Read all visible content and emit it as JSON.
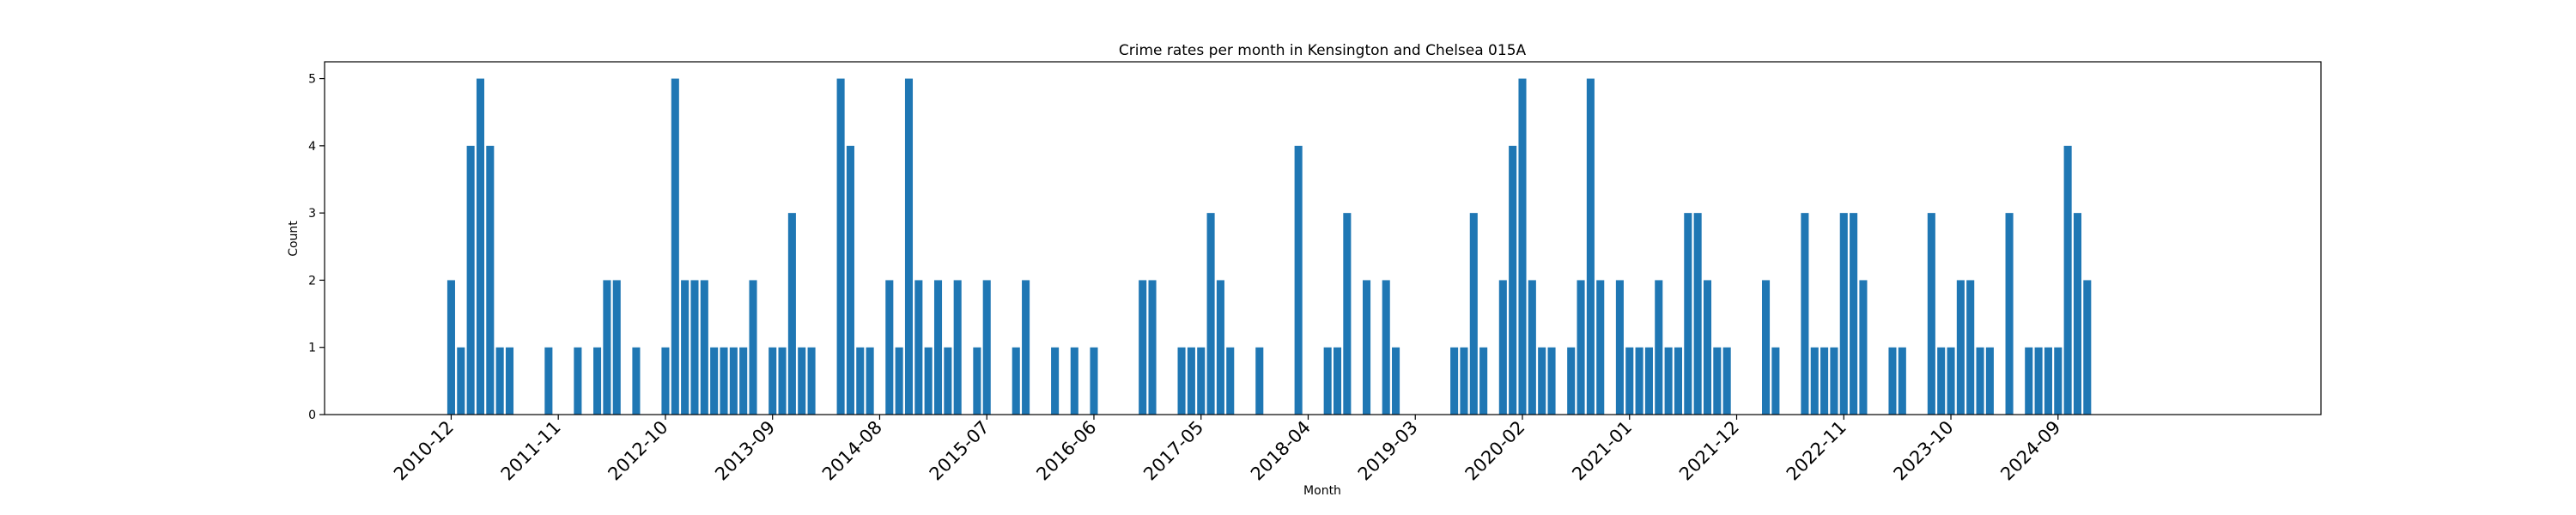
{
  "chart_data": {
    "type": "bar",
    "title": "Crime rates per month in Kensington and Chelsea 015A",
    "xlabel": "Month",
    "ylabel": "Count",
    "ylim": [
      0,
      5.25
    ],
    "yticks": [
      0,
      1,
      2,
      3,
      4,
      5
    ],
    "xlim": [
      "2009-11",
      "2026-12"
    ],
    "xticks": [
      "2010-12",
      "2011-11",
      "2012-10",
      "2013-09",
      "2014-08",
      "2015-07",
      "2016-06",
      "2017-05",
      "2018-04",
      "2019-03",
      "2020-02",
      "2021-01",
      "2021-12",
      "2022-11",
      "2023-10",
      "2024-09"
    ],
    "bar_color": "#1f77b4",
    "grid": false,
    "legend": "none",
    "points": [
      {
        "x": "2010-12",
        "y": 2
      },
      {
        "x": "2011-01",
        "y": 1
      },
      {
        "x": "2011-02",
        "y": 4
      },
      {
        "x": "2011-03",
        "y": 5
      },
      {
        "x": "2011-04",
        "y": 4
      },
      {
        "x": "2011-05",
        "y": 1
      },
      {
        "x": "2011-06",
        "y": 1
      },
      {
        "x": "2011-10",
        "y": 1
      },
      {
        "x": "2012-01",
        "y": 1
      },
      {
        "x": "2012-03",
        "y": 1
      },
      {
        "x": "2012-04",
        "y": 2
      },
      {
        "x": "2012-05",
        "y": 2
      },
      {
        "x": "2012-07",
        "y": 1
      },
      {
        "x": "2012-10",
        "y": 1
      },
      {
        "x": "2012-11",
        "y": 5
      },
      {
        "x": "2012-12",
        "y": 2
      },
      {
        "x": "2013-01",
        "y": 2
      },
      {
        "x": "2013-02",
        "y": 2
      },
      {
        "x": "2013-03",
        "y": 1
      },
      {
        "x": "2013-04",
        "y": 1
      },
      {
        "x": "2013-05",
        "y": 1
      },
      {
        "x": "2013-06",
        "y": 1
      },
      {
        "x": "2013-07",
        "y": 2
      },
      {
        "x": "2013-09",
        "y": 1
      },
      {
        "x": "2013-10",
        "y": 1
      },
      {
        "x": "2013-11",
        "y": 3
      },
      {
        "x": "2013-12",
        "y": 1
      },
      {
        "x": "2014-01",
        "y": 1
      },
      {
        "x": "2014-04",
        "y": 5
      },
      {
        "x": "2014-05",
        "y": 4
      },
      {
        "x": "2014-06",
        "y": 1
      },
      {
        "x": "2014-07",
        "y": 1
      },
      {
        "x": "2014-09",
        "y": 2
      },
      {
        "x": "2014-10",
        "y": 1
      },
      {
        "x": "2014-11",
        "y": 5
      },
      {
        "x": "2014-12",
        "y": 2
      },
      {
        "x": "2015-01",
        "y": 1
      },
      {
        "x": "2015-02",
        "y": 2
      },
      {
        "x": "2015-03",
        "y": 1
      },
      {
        "x": "2015-04",
        "y": 2
      },
      {
        "x": "2015-06",
        "y": 1
      },
      {
        "x": "2015-07",
        "y": 2
      },
      {
        "x": "2015-10",
        "y": 1
      },
      {
        "x": "2015-11",
        "y": 2
      },
      {
        "x": "2016-02",
        "y": 1
      },
      {
        "x": "2016-04",
        "y": 1
      },
      {
        "x": "2016-06",
        "y": 1
      },
      {
        "x": "2016-11",
        "y": 2
      },
      {
        "x": "2016-12",
        "y": 2
      },
      {
        "x": "2017-03",
        "y": 1
      },
      {
        "x": "2017-04",
        "y": 1
      },
      {
        "x": "2017-05",
        "y": 1
      },
      {
        "x": "2017-06",
        "y": 3
      },
      {
        "x": "2017-07",
        "y": 2
      },
      {
        "x": "2017-08",
        "y": 1
      },
      {
        "x": "2017-11",
        "y": 1
      },
      {
        "x": "2018-03",
        "y": 4
      },
      {
        "x": "2018-06",
        "y": 1
      },
      {
        "x": "2018-07",
        "y": 1
      },
      {
        "x": "2018-08",
        "y": 3
      },
      {
        "x": "2018-10",
        "y": 2
      },
      {
        "x": "2018-12",
        "y": 2
      },
      {
        "x": "2019-01",
        "y": 1
      },
      {
        "x": "2019-07",
        "y": 1
      },
      {
        "x": "2019-08",
        "y": 1
      },
      {
        "x": "2019-09",
        "y": 3
      },
      {
        "x": "2019-10",
        "y": 1
      },
      {
        "x": "2019-12",
        "y": 2
      },
      {
        "x": "2020-01",
        "y": 4
      },
      {
        "x": "2020-02",
        "y": 5
      },
      {
        "x": "2020-03",
        "y": 2
      },
      {
        "x": "2020-04",
        "y": 1
      },
      {
        "x": "2020-05",
        "y": 1
      },
      {
        "x": "2020-07",
        "y": 1
      },
      {
        "x": "2020-08",
        "y": 2
      },
      {
        "x": "2020-09",
        "y": 5
      },
      {
        "x": "2020-10",
        "y": 2
      },
      {
        "x": "2020-12",
        "y": 2
      },
      {
        "x": "2021-01",
        "y": 1
      },
      {
        "x": "2021-02",
        "y": 1
      },
      {
        "x": "2021-03",
        "y": 1
      },
      {
        "x": "2021-04",
        "y": 2
      },
      {
        "x": "2021-05",
        "y": 1
      },
      {
        "x": "2021-06",
        "y": 1
      },
      {
        "x": "2021-07",
        "y": 3
      },
      {
        "x": "2021-08",
        "y": 3
      },
      {
        "x": "2021-09",
        "y": 2
      },
      {
        "x": "2021-10",
        "y": 1
      },
      {
        "x": "2021-11",
        "y": 1
      },
      {
        "x": "2022-03",
        "y": 2
      },
      {
        "x": "2022-04",
        "y": 1
      },
      {
        "x": "2022-07",
        "y": 3
      },
      {
        "x": "2022-08",
        "y": 1
      },
      {
        "x": "2022-09",
        "y": 1
      },
      {
        "x": "2022-10",
        "y": 1
      },
      {
        "x": "2022-11",
        "y": 3
      },
      {
        "x": "2022-12",
        "y": 3
      },
      {
        "x": "2023-01",
        "y": 2
      },
      {
        "x": "2023-04",
        "y": 1
      },
      {
        "x": "2023-05",
        "y": 1
      },
      {
        "x": "2023-08",
        "y": 3
      },
      {
        "x": "2023-09",
        "y": 1
      },
      {
        "x": "2023-10",
        "y": 1
      },
      {
        "x": "2023-11",
        "y": 2
      },
      {
        "x": "2023-12",
        "y": 2
      },
      {
        "x": "2024-01",
        "y": 1
      },
      {
        "x": "2024-02",
        "y": 1
      },
      {
        "x": "2024-04",
        "y": 3
      },
      {
        "x": "2024-06",
        "y": 1
      },
      {
        "x": "2024-07",
        "y": 1
      },
      {
        "x": "2024-08",
        "y": 1
      },
      {
        "x": "2024-09",
        "y": 1
      },
      {
        "x": "2024-10",
        "y": 4
      },
      {
        "x": "2024-11",
        "y": 3
      },
      {
        "x": "2024-12",
        "y": 2
      }
    ]
  }
}
